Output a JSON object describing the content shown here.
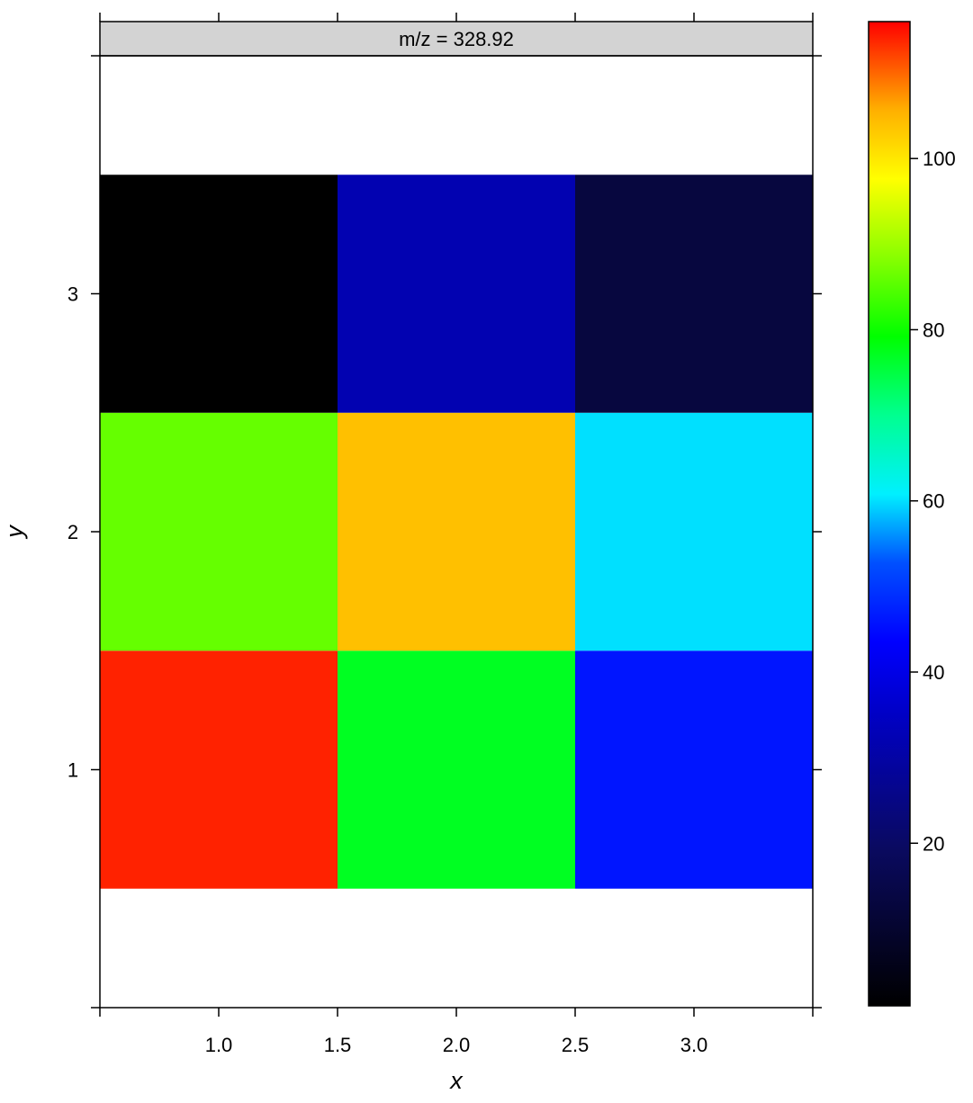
{
  "chart_data": {
    "type": "heatmap",
    "strip_label": "m/z = 328.92",
    "xlabel": "x",
    "ylabel": "y",
    "xlim": [
      0.5,
      3.5
    ],
    "ylim": [
      0,
      4
    ],
    "x_ticks": [
      1.0,
      1.5,
      2.0,
      2.5,
      3.0
    ],
    "x_tick_labels": [
      "1.0",
      "1.5",
      "2.0",
      "2.5",
      "3.0"
    ],
    "y_ticks": [
      1,
      2,
      3
    ],
    "y_tick_labels": [
      "1",
      "2",
      "3"
    ],
    "cells": [
      {
        "x": 1,
        "y": 1,
        "value": 114
      },
      {
        "x": 2,
        "y": 1,
        "value": 77
      },
      {
        "x": 3,
        "y": 1,
        "value": 46
      },
      {
        "x": 1,
        "y": 2,
        "value": 86
      },
      {
        "x": 2,
        "y": 2,
        "value": 104
      },
      {
        "x": 3,
        "y": 2,
        "value": 60
      },
      {
        "x": 1,
        "y": 3,
        "value": 1
      },
      {
        "x": 2,
        "y": 3,
        "value": 32
      },
      {
        "x": 3,
        "y": 3,
        "value": 13
      }
    ],
    "colorbar": {
      "range": [
        1,
        116
      ],
      "ticks": [
        20,
        40,
        60,
        80,
        100
      ],
      "tick_labels": [
        "20",
        "40",
        "60",
        "80",
        "100"
      ],
      "colormap": [
        [
          0.0,
          "#000000"
        ],
        [
          0.16,
          "#0a0a60"
        ],
        [
          0.3,
          "#0000c8"
        ],
        [
          0.37,
          "#0000ff"
        ],
        [
          0.45,
          "#0050ff"
        ],
        [
          0.52,
          "#00f0ff"
        ],
        [
          0.6,
          "#00ff90"
        ],
        [
          0.68,
          "#00ff00"
        ],
        [
          0.76,
          "#88ff00"
        ],
        [
          0.84,
          "#ffff00"
        ],
        [
          0.91,
          "#ffb000"
        ],
        [
          1.0,
          "#ff0000"
        ]
      ]
    }
  }
}
